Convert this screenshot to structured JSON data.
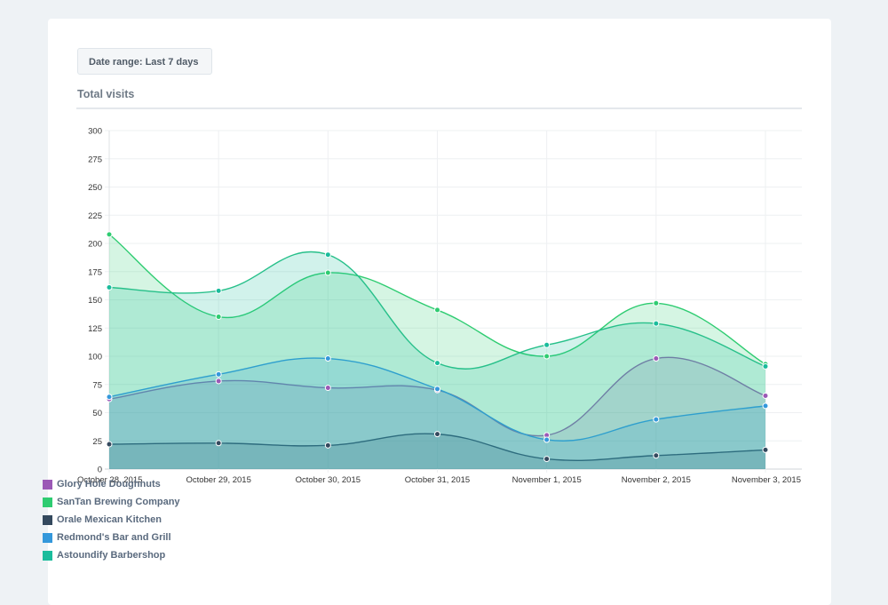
{
  "date_range": {
    "label": "Date range: Last 7 days"
  },
  "section": {
    "title": "Total visits"
  },
  "chart_data": {
    "type": "area",
    "title": "",
    "xlabel": "",
    "ylabel": "",
    "ylim": [
      0,
      300
    ],
    "yticks": [
      0,
      25,
      50,
      75,
      100,
      125,
      150,
      175,
      200,
      225,
      250,
      275,
      300
    ],
    "grid": true,
    "legend_position": "bottom-left",
    "categories": [
      "October 28, 2015",
      "October 29, 2015",
      "October 30, 2015",
      "October 31, 2015",
      "November 1, 2015",
      "November 2, 2015",
      "November 3, 2015"
    ],
    "series": [
      {
        "name": "Glory Hole Doughnuts",
        "color": "#9b59b6",
        "values": [
          62,
          78,
          72,
          70,
          30,
          98,
          65
        ]
      },
      {
        "name": "SanTan Brewing Company",
        "color": "#2ecc71",
        "values": [
          208,
          135,
          174,
          141,
          100,
          147,
          93
        ]
      },
      {
        "name": "Orale Mexican Kitchen",
        "color": "#34495e",
        "values": [
          22,
          23,
          21,
          31,
          9,
          12,
          17
        ]
      },
      {
        "name": "Redmond's Bar and Grill",
        "color": "#3498db",
        "values": [
          64,
          84,
          98,
          71,
          26,
          44,
          56
        ]
      },
      {
        "name": "Astoundify Barbershop",
        "color": "#1abc9c",
        "values": [
          161,
          158,
          190,
          94,
          110,
          129,
          91
        ]
      }
    ]
  }
}
